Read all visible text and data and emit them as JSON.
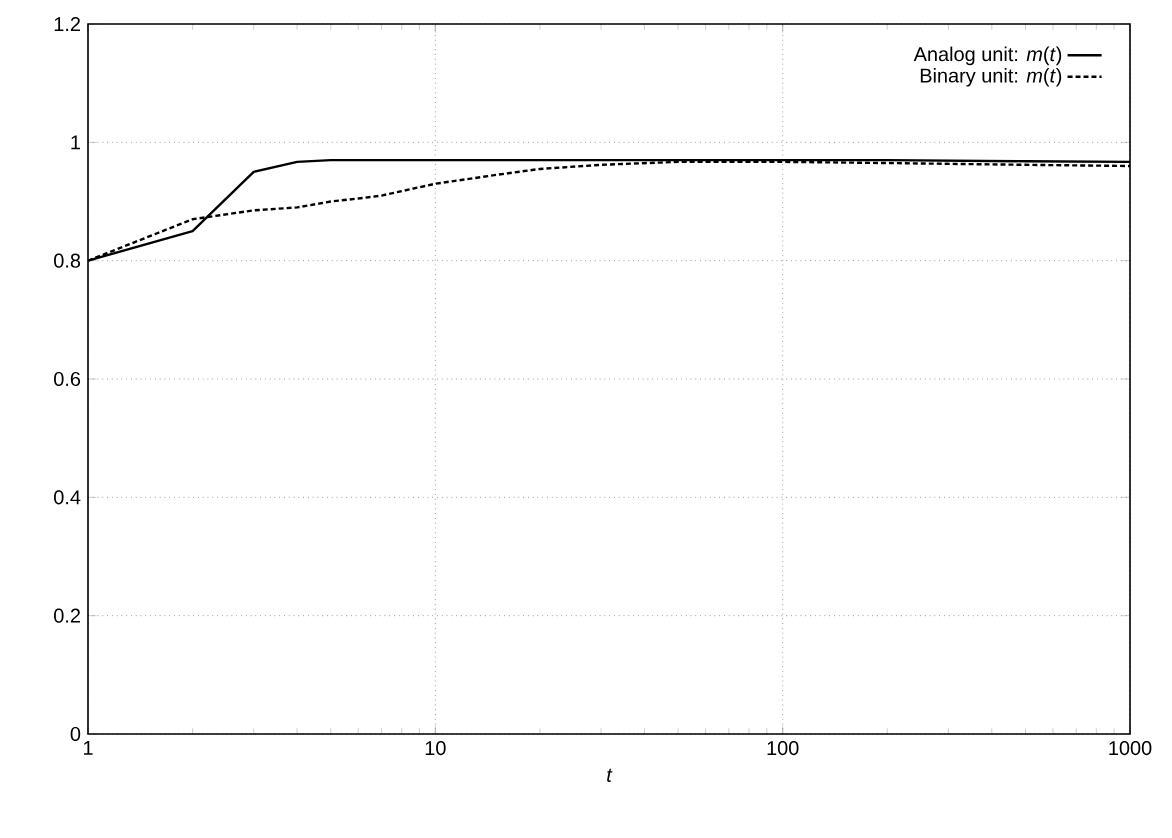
{
  "chart_data": {
    "type": "line",
    "xlabel": "t",
    "log": "x",
    "grid": true,
    "legend": "top right",
    "xlim": [
      1,
      1000
    ],
    "ylim": [
      0,
      1.2
    ],
    "xticks": [
      1,
      10,
      100,
      1000
    ],
    "yticks": [
      0,
      0.2,
      0.4,
      0.6,
      0.8,
      1,
      1.2
    ],
    "series": [
      {
        "name": "Analog unit: *m*(*t*)",
        "color": "#000000",
        "line_style": "solid",
        "x": [
          1,
          2,
          3,
          4,
          5,
          7,
          10,
          20,
          50,
          100,
          200,
          500,
          1000
        ],
        "values": [
          0.8,
          0.85,
          0.95,
          0.967,
          0.97,
          0.97,
          0.97,
          0.97,
          0.97,
          0.97,
          0.97,
          0.968,
          0.967
        ]
      },
      {
        "name": "Binary unit: *m*(*t*)",
        "color": "#000000",
        "line_style": "dashed",
        "x": [
          1,
          2,
          3,
          4,
          5,
          6,
          7,
          10,
          15,
          20,
          30,
          50,
          100,
          200,
          500,
          1000
        ],
        "values": [
          0.8,
          0.87,
          0.885,
          0.89,
          0.9,
          0.905,
          0.91,
          0.93,
          0.945,
          0.955,
          0.962,
          0.967,
          0.967,
          0.965,
          0.962,
          0.96
        ]
      }
    ]
  }
}
